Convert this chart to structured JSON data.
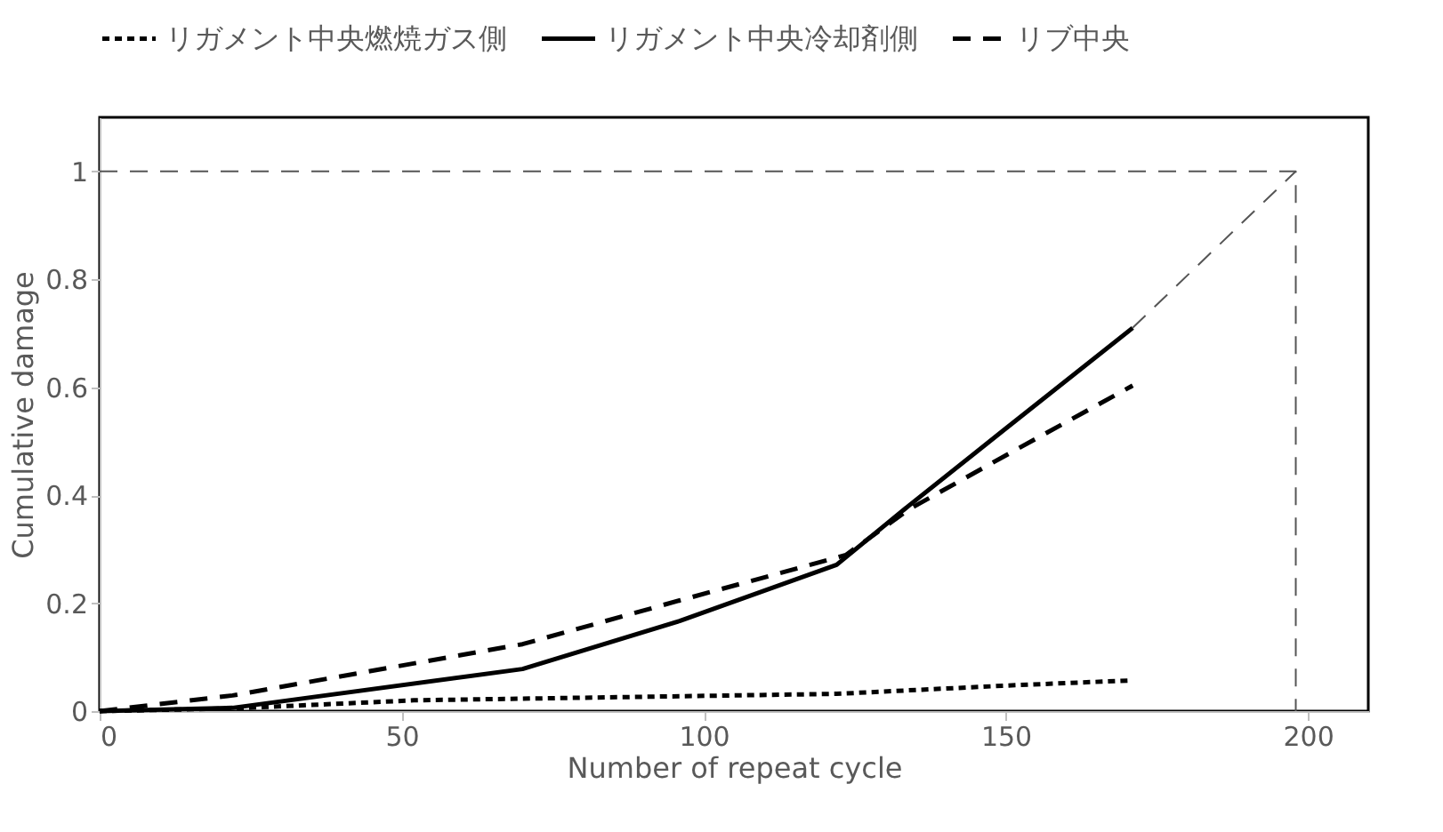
{
  "chart_data": {
    "type": "line",
    "xlabel": "Number of repeat cycle",
    "ylabel": "Cumulative damage",
    "xlim": [
      0,
      210
    ],
    "ylim": [
      0,
      1.1
    ],
    "xticks": [
      0,
      50,
      100,
      150,
      200
    ],
    "yticks": [
      0,
      0.2,
      0.4,
      0.6,
      0.8,
      1
    ],
    "grid": false,
    "legend": "top",
    "marker": "none",
    "series": [
      {
        "name": "リガメント中央燃焼ガス側",
        "color": "#000000",
        "line_style": "dotted",
        "x": [
          0,
          22,
          52,
          122,
          149.5,
          171
        ],
        "values": [
          0,
          0.005,
          0.02,
          0.032,
          0.047,
          0.057
        ]
      },
      {
        "name": "リガメント中央冷却剤側",
        "color": "#000000",
        "line_style": "solid",
        "x": [
          0,
          22,
          70,
          96,
          122,
          134,
          149.5,
          171
        ],
        "values": [
          0,
          0.006,
          0.078,
          0.167,
          0.271,
          0.381,
          0.519,
          0.71
        ]
      },
      {
        "name": "リブ中央",
        "color": "#000000",
        "line_style": "dashed",
        "x": [
          0,
          22,
          70,
          96,
          123.5,
          134,
          151,
          171
        ],
        "values": [
          0,
          0.029,
          0.124,
          0.205,
          0.289,
          0.374,
          0.48,
          0.603
        ]
      },
      {
        "color": "#555555",
        "line_style": "dashed",
        "x": [
          171,
          198
        ],
        "values": [
          0.71,
          1
        ]
      },
      {
        "color": "#555555",
        "line_style": "dashed",
        "x": [
          0,
          198,
          198
        ],
        "values": [
          1,
          1,
          0
        ]
      }
    ]
  }
}
